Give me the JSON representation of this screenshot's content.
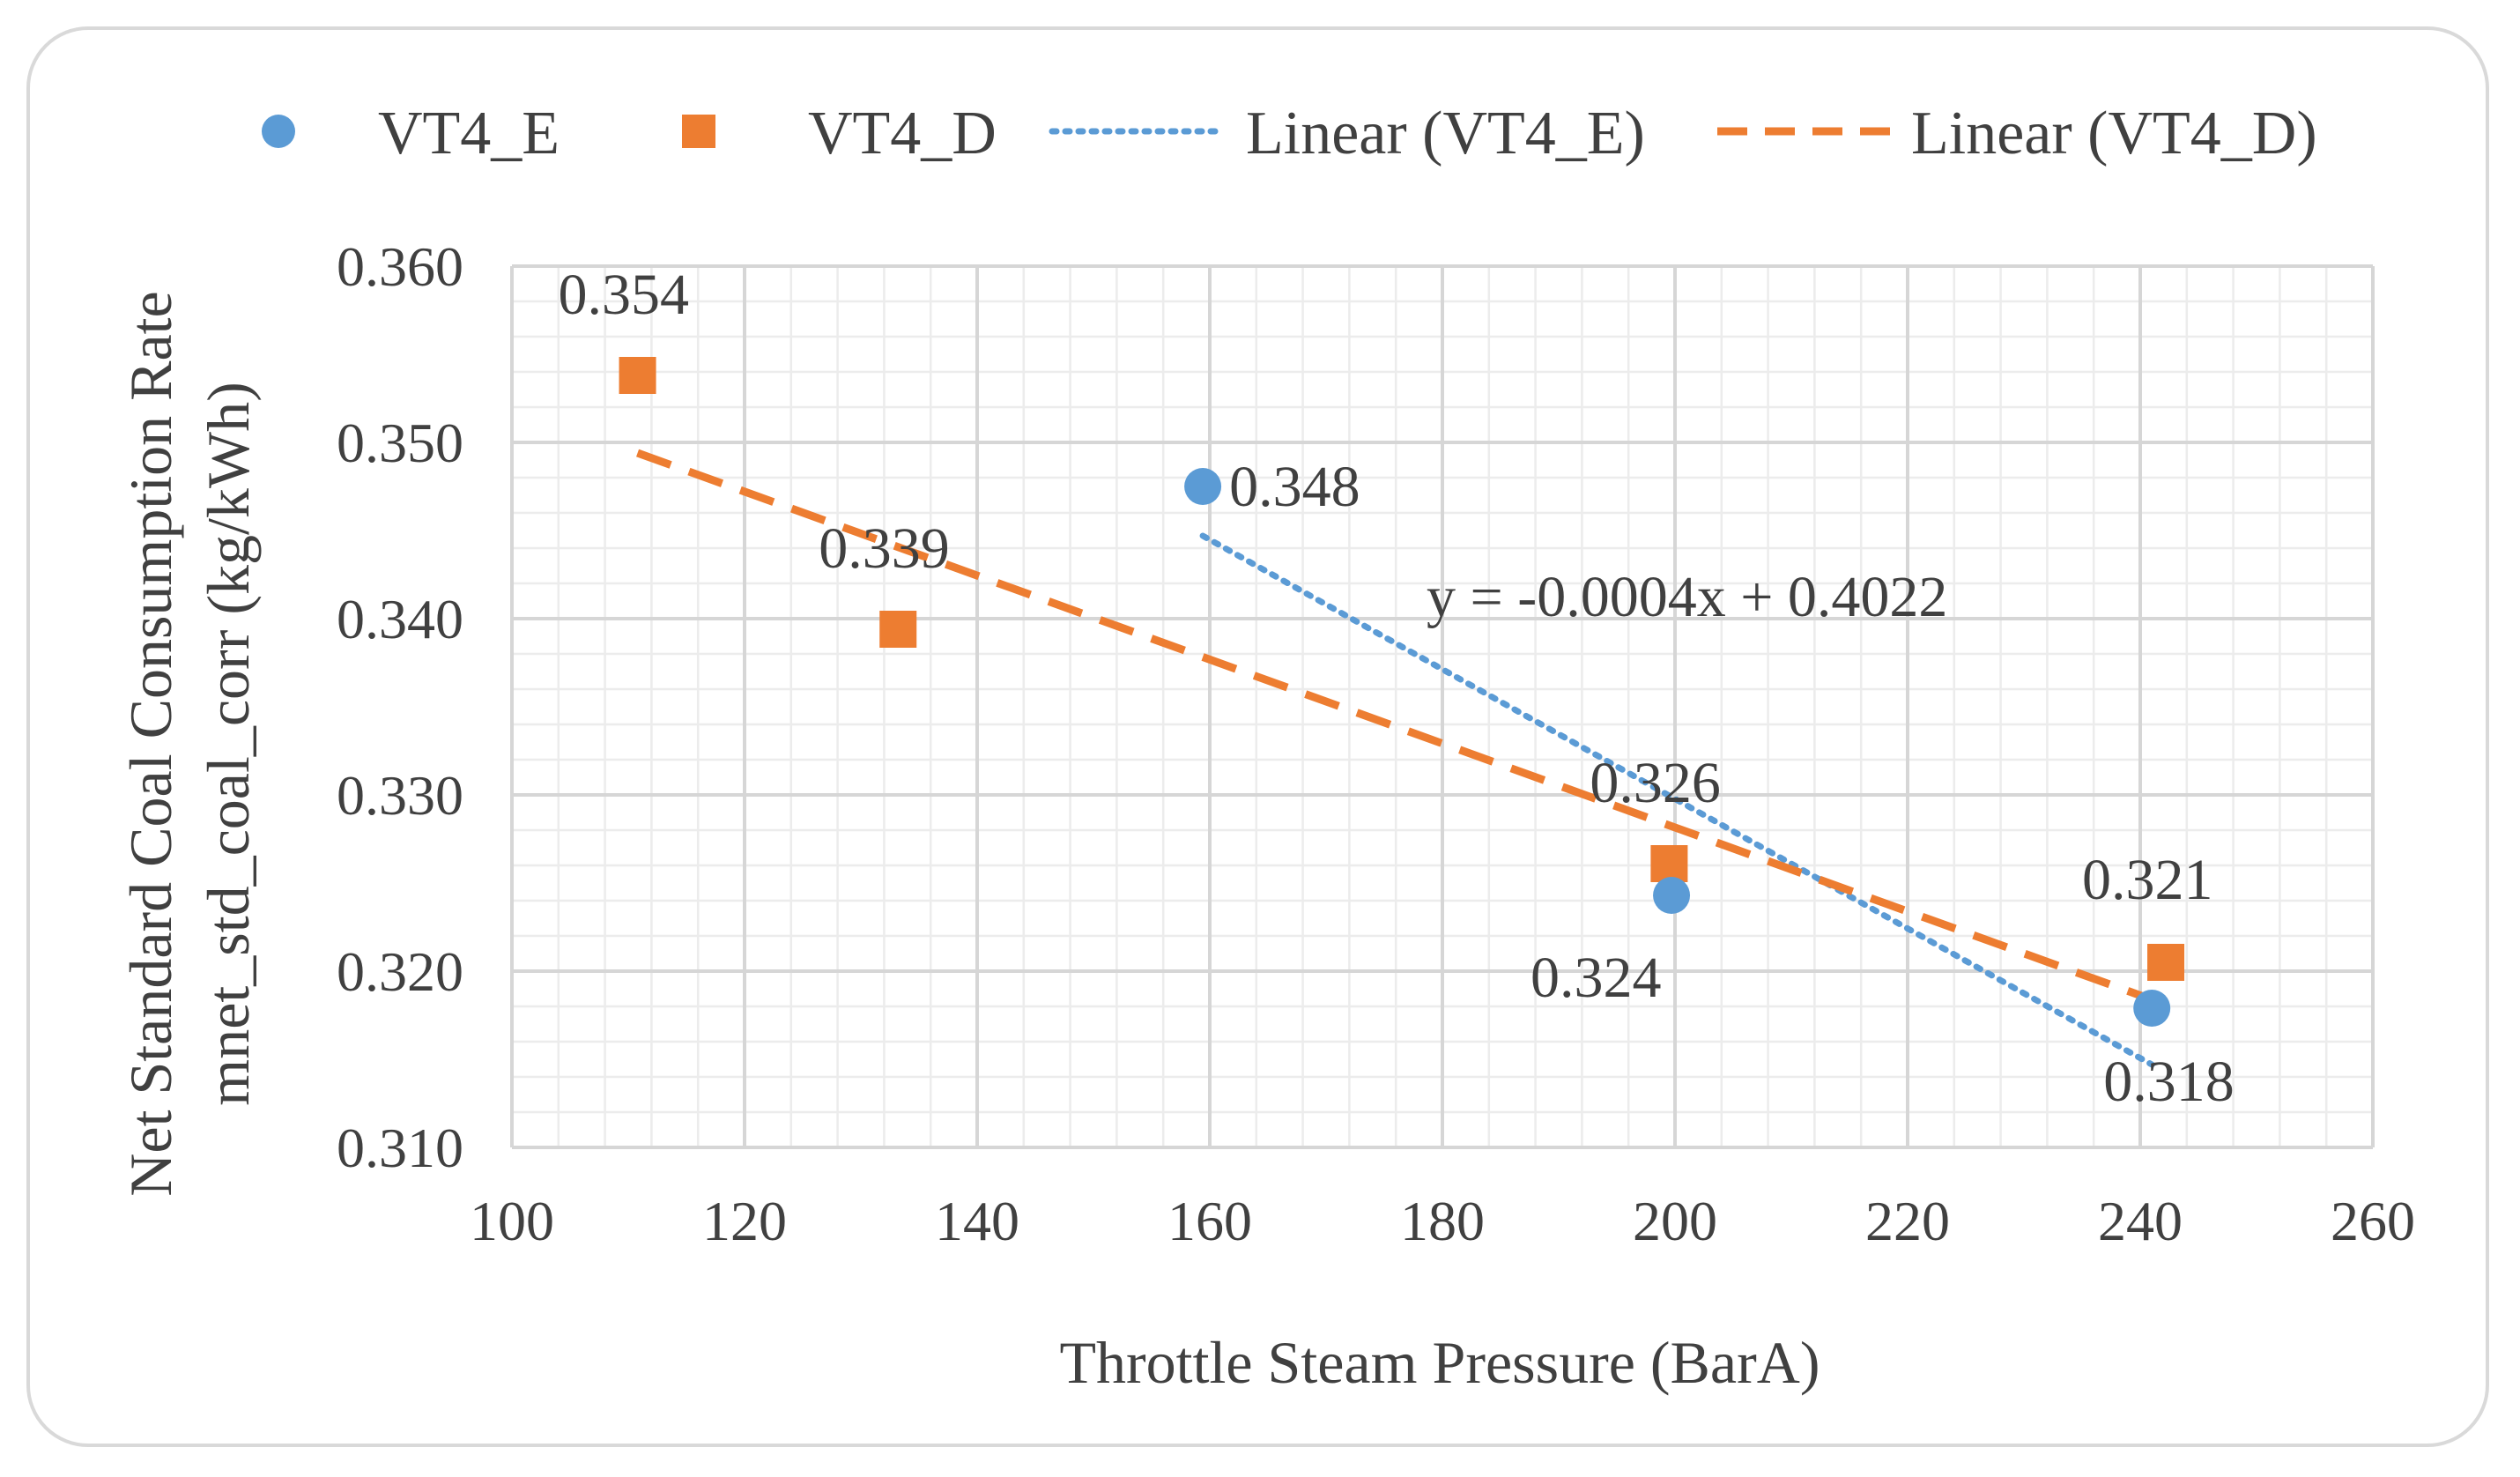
{
  "chart_data": {
    "type": "scatter",
    "title": "",
    "xlabel": "Throttle Steam Pressure (BarA)",
    "ylabel": "Net Standard Coal Consumption Rate mnet_std_coal_corr (kg/kWh)",
    "ylabel_lines": [
      "Net Standard Coal Consumption Rate",
      "mnet_std_coal_corr (kg/kWh)"
    ],
    "xlim": [
      100,
      260
    ],
    "ylim": [
      0.31,
      0.36
    ],
    "x_ticks": [
      100,
      120,
      140,
      160,
      180,
      200,
      220,
      240,
      260
    ],
    "x_tick_labels": [
      "100",
      "120",
      "140",
      "160",
      "180",
      "200",
      "220",
      "240",
      "260"
    ],
    "y_ticks": [
      0.31,
      0.32,
      0.33,
      0.34,
      0.35,
      0.36
    ],
    "y_tick_labels": [
      "0.310",
      "0.320",
      "0.330",
      "0.340",
      "0.350",
      "0.360"
    ],
    "grid": true,
    "legend_position": "top",
    "series": [
      {
        "name": "VT4_E",
        "marker": "circle",
        "color": "#5b9bd5",
        "x": [
          159.4,
          199.7,
          241.0
        ],
        "y": [
          0.3475,
          0.3243,
          0.3179
        ],
        "labels": [
          "0.348",
          "0.324",
          "0.318"
        ]
      },
      {
        "name": "VT4_D",
        "marker": "square",
        "color": "#ed7d31",
        "x": [
          110.8,
          133.2,
          199.5,
          242.2
        ],
        "y": [
          0.3538,
          0.3394,
          0.3261,
          0.3205
        ],
        "labels": [
          "0.354",
          "0.339",
          "0.326",
          "0.321"
        ]
      }
    ],
    "trendlines": [
      {
        "name": "Linear (VT4_E)",
        "of": "VT4_E",
        "style": "dotted",
        "color": "#5b9bd5",
        "x": [
          159.4,
          241.0
        ],
        "y": [
          0.3447,
          0.3147
        ],
        "equation": "y = -0.0004x + 0.4022"
      },
      {
        "name": "Linear (VT4_D)",
        "of": "VT4_D",
        "style": "dashed",
        "color": "#ed7d31",
        "x": [
          110.8,
          242.2
        ],
        "y": [
          0.3494,
          0.3181
        ]
      }
    ]
  }
}
